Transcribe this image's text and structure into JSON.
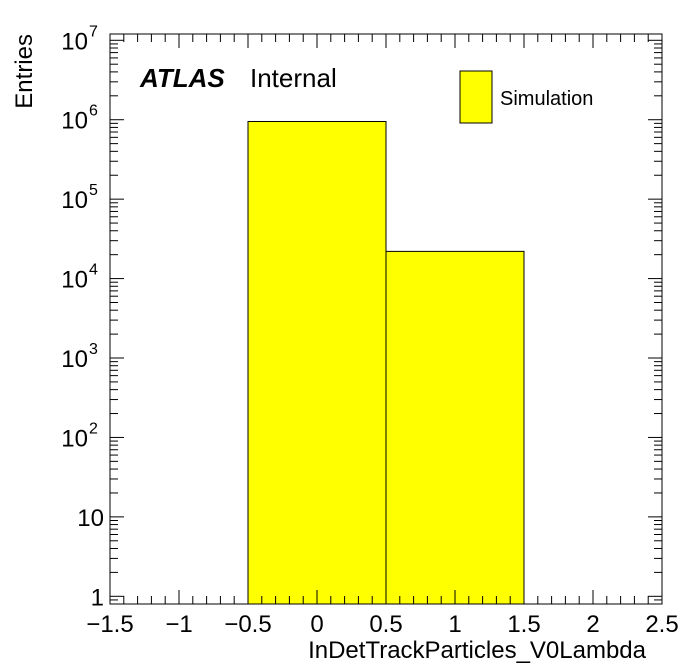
{
  "chart_data": {
    "type": "histogram",
    "xlabel": "InDetTrackParticles_V0Lambda",
    "ylabel": "Entries",
    "y_scale": "log",
    "xlim": [
      -1.5,
      2.5
    ],
    "ylim": [
      0.8,
      12000000
    ],
    "x_ticks": [
      -1.5,
      -1,
      -0.5,
      0,
      0.5,
      1,
      1.5,
      2,
      2.5
    ],
    "x_tick_labels": [
      "−1.5",
      "−1",
      "−0.5",
      "0",
      "0.5",
      "1",
      "1.5",
      "2",
      "2.5"
    ],
    "y_ticks": [
      {
        "value": 1,
        "label": "1",
        "exp": ""
      },
      {
        "value": 10,
        "label": "10",
        "exp": ""
      },
      {
        "value": 100,
        "label": "10",
        "exp": "2"
      },
      {
        "value": 1000,
        "label": "10",
        "exp": "3"
      },
      {
        "value": 10000,
        "label": "10",
        "exp": "4"
      },
      {
        "value": 100000,
        "label": "10",
        "exp": "5"
      },
      {
        "value": 1000000,
        "label": "10",
        "exp": "6"
      },
      {
        "value": 10000000,
        "label": "10",
        "exp": "7"
      }
    ],
    "bins": [
      {
        "low": -0.5,
        "high": 0.5,
        "value": 950000
      },
      {
        "low": 0.5,
        "high": 1.5,
        "value": 22000
      }
    ],
    "fill_color": "#ffff00",
    "line_color": "#000000",
    "legend": {
      "label": "Simulation",
      "placement": "top-right"
    },
    "annotation": {
      "atlas": "ATLAS",
      "status": "Internal"
    }
  }
}
